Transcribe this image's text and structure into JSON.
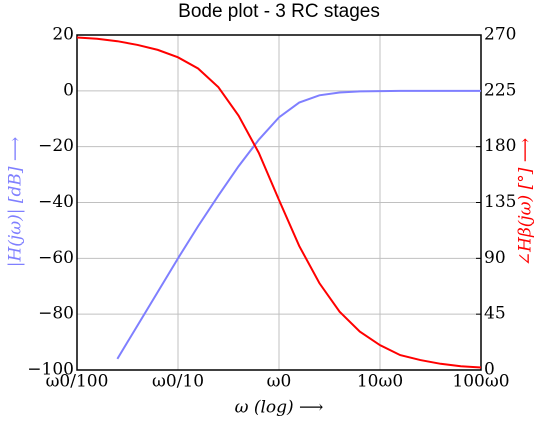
{
  "chart_data": {
    "type": "line",
    "title": "Bode plot - 3 RC stages",
    "x_label": "ω (log) ⟶",
    "y_label": "|H(jω)| [dB] ⟶",
    "y2_label": "∠Hβ(jω) [°] ⟶",
    "xscale": "log",
    "grid": true,
    "x": [
      0.01,
      0.0158,
      0.0251,
      0.0398,
      0.0631,
      0.1,
      0.158,
      0.251,
      0.398,
      0.631,
      1,
      1.585,
      2.512,
      3.981,
      6.31,
      10,
      15.85,
      25.12,
      39.81,
      63.1,
      100
    ],
    "xlim": [
      0.01,
      100
    ],
    "xticks": [
      {
        "value": 0.01,
        "label": "ω0/100"
      },
      {
        "value": 0.1,
        "label": "ω0/10"
      },
      {
        "value": 1,
        "label": "ω0"
      },
      {
        "value": 10,
        "label": "10ω0"
      },
      {
        "value": 100,
        "label": "100ω0"
      }
    ],
    "ylim": [
      -100,
      20
    ],
    "yticks": [
      {
        "value": -100,
        "label": "−100"
      },
      {
        "value": -80,
        "label": "−80"
      },
      {
        "value": -60,
        "label": "−60"
      },
      {
        "value": -40,
        "label": "−40"
      },
      {
        "value": -20,
        "label": "−20"
      },
      0,
      20
    ],
    "y2lim": [
      0,
      270
    ],
    "y2ticks": [
      0,
      45,
      90,
      135,
      180,
      225,
      270
    ],
    "series": [
      {
        "name": "|H(jω)|",
        "color": "#7f7fff",
        "values": [
          null,
          null,
          -96,
          -84,
          -72,
          -60,
          -48.5,
          -37.5,
          -27,
          -17.5,
          -9.5,
          -4.2,
          -1.6,
          -0.6,
          -0.2,
          -0.1,
          0,
          0,
          0,
          0,
          0
        ]
      },
      {
        "name": "∠Hβ(jω)",
        "color": "#ff0000",
        "axis": "y2",
        "values": [
          268,
          267,
          265,
          262,
          258,
          252,
          243,
          228,
          205,
          175,
          137,
          100,
          70,
          47,
          31,
          20,
          12,
          8,
          5,
          3,
          2
        ]
      }
    ]
  }
}
